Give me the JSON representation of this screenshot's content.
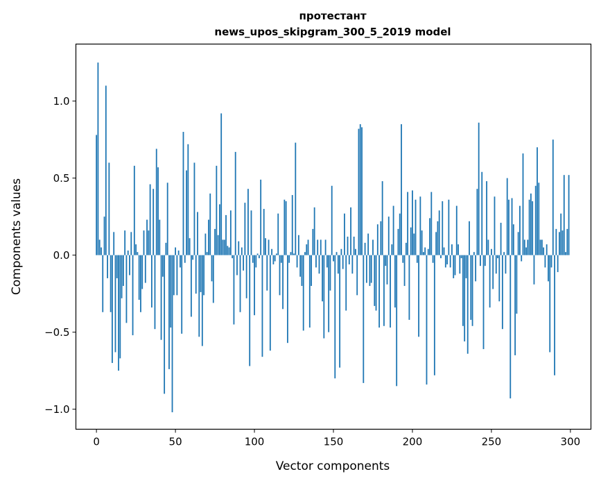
{
  "chart_data": {
    "type": "bar",
    "title": "протестант",
    "subtitle": "news_upos_skipgram_300_5_2019 model",
    "xlabel": "Vector components",
    "ylabel": "Components values",
    "xlim": [
      -13,
      313
    ],
    "ylim": [
      -1.13,
      1.37
    ],
    "xticks": [
      0,
      50,
      100,
      150,
      200,
      250,
      300
    ],
    "xtick_labels": [
      "0",
      "50",
      "100",
      "150",
      "200",
      "250",
      "300"
    ],
    "yticks": [
      -1.0,
      -0.5,
      0.0,
      0.5,
      1.0
    ],
    "ytick_labels": [
      "−1.0",
      "−0.5",
      "0.0",
      "0.5",
      "1.0"
    ],
    "grid": false,
    "color": "#1f77b4",
    "values": [
      0.78,
      1.25,
      0.1,
      0.05,
      -0.37,
      0.25,
      1.1,
      -0.15,
      0.6,
      -0.37,
      -0.7,
      0.15,
      -0.63,
      -0.15,
      -0.75,
      -0.67,
      -0.28,
      -0.2,
      0.16,
      -0.44,
      0.03,
      -0.13,
      0.15,
      -0.52,
      0.58,
      0.07,
      0.02,
      -0.29,
      -0.37,
      -0.22,
      0.16,
      -0.18,
      0.23,
      0.16,
      0.46,
      -0.34,
      0.43,
      -0.48,
      0.69,
      0.57,
      0.23,
      -0.55,
      -0.14,
      -0.9,
      0.08,
      0.47,
      -0.74,
      -0.47,
      -1.02,
      -0.26,
      0.05,
      -0.26,
      0.03,
      -0.08,
      -0.51,
      0.8,
      -0.05,
      0.55,
      0.72,
      0.11,
      -0.4,
      -0.03,
      0.6,
      -0.25,
      0.28,
      -0.53,
      -0.24,
      -0.59,
      -0.26,
      0.14,
      0.02,
      0.23,
      0.4,
      -0.17,
      -0.31,
      0.17,
      0.58,
      0.13,
      0.33,
      0.92,
      0.1,
      0.1,
      0.26,
      0.06,
      0.05,
      0.29,
      -0.02,
      -0.45,
      0.67,
      -0.13,
      0.09,
      -0.37,
      0.05,
      -0.1,
      0.34,
      -0.28,
      0.43,
      -0.72,
      0.29,
      -0.05,
      -0.39,
      -0.08,
      0.01,
      -0.02,
      0.49,
      -0.66,
      0.3,
      0.11,
      -0.23,
      0.1,
      -0.62,
      0.04,
      -0.06,
      -0.04,
      0.01,
      0.27,
      -0.26,
      -0.05,
      -0.35,
      0.36,
      0.35,
      -0.57,
      -0.05,
      0.02,
      0.39,
      0.01,
      0.73,
      -0.08,
      0.13,
      -0.14,
      -0.2,
      -0.49,
      0.02,
      0.07,
      0.1,
      -0.47,
      -0.2,
      0.17,
      0.31,
      -0.08,
      0.1,
      -0.12,
      0.1,
      -0.3,
      -0.54,
      0.1,
      -0.08,
      -0.5,
      -0.23,
      0.45,
      -0.04,
      -0.8,
      0.02,
      -0.12,
      -0.73,
      0.04,
      -0.09,
      0.27,
      -0.36,
      0.12,
      -0.06,
      0.31,
      -0.12,
      0.12,
      0.04,
      -0.26,
      0.82,
      0.85,
      0.83,
      -0.83,
      0.08,
      -0.18,
      0.14,
      -0.2,
      -0.18,
      0.1,
      -0.33,
      -0.36,
      0.2,
      -0.47,
      0.22,
      0.48,
      -0.46,
      -0.07,
      -0.19,
      0.25,
      -0.47,
      0.07,
      0.32,
      -0.34,
      -0.85,
      0.17,
      0.27,
      0.85,
      -0.05,
      -0.2,
      0.08,
      0.41,
      -0.42,
      0.18,
      0.42,
      0.14,
      0.36,
      -0.05,
      -0.53,
      0.38,
      0.16,
      0.02,
      0.05,
      -0.84,
      0.04,
      0.24,
      0.41,
      -0.05,
      -0.78,
      0.15,
      0.22,
      0.29,
      -0.02,
      0.35,
      0.05,
      -0.08,
      -0.06,
      0.36,
      -0.08,
      0.07,
      -0.15,
      -0.13,
      0.32,
      0.07,
      -0.12,
      -0.02,
      -0.46,
      -0.56,
      -0.15,
      -0.64,
      0.22,
      -0.42,
      -0.46,
      0.02,
      -0.17,
      0.43,
      0.86,
      -0.07,
      0.54,
      -0.61,
      -0.07,
      0.48,
      0.1,
      -0.34,
      0.04,
      -0.22,
      0.38,
      -0.12,
      -0.02,
      -0.3,
      0.21,
      -0.48,
      0.02,
      -0.12,
      0.5,
      0.36,
      -0.93,
      0.37,
      0.2,
      -0.65,
      -0.38,
      0.15,
      0.32,
      -0.04,
      0.66,
      0.1,
      0.05,
      0.1,
      0.36,
      0.4,
      0.35,
      -0.19,
      0.45,
      0.7,
      0.47,
      0.1,
      0.1,
      0.05,
      -0.08,
      0.07,
      -0.17,
      -0.63,
      -0.08,
      0.75,
      -0.78,
      0.17,
      -0.11,
      0.15,
      0.27,
      0.16,
      0.52,
      0.02,
      0.17,
      0.52
    ]
  }
}
